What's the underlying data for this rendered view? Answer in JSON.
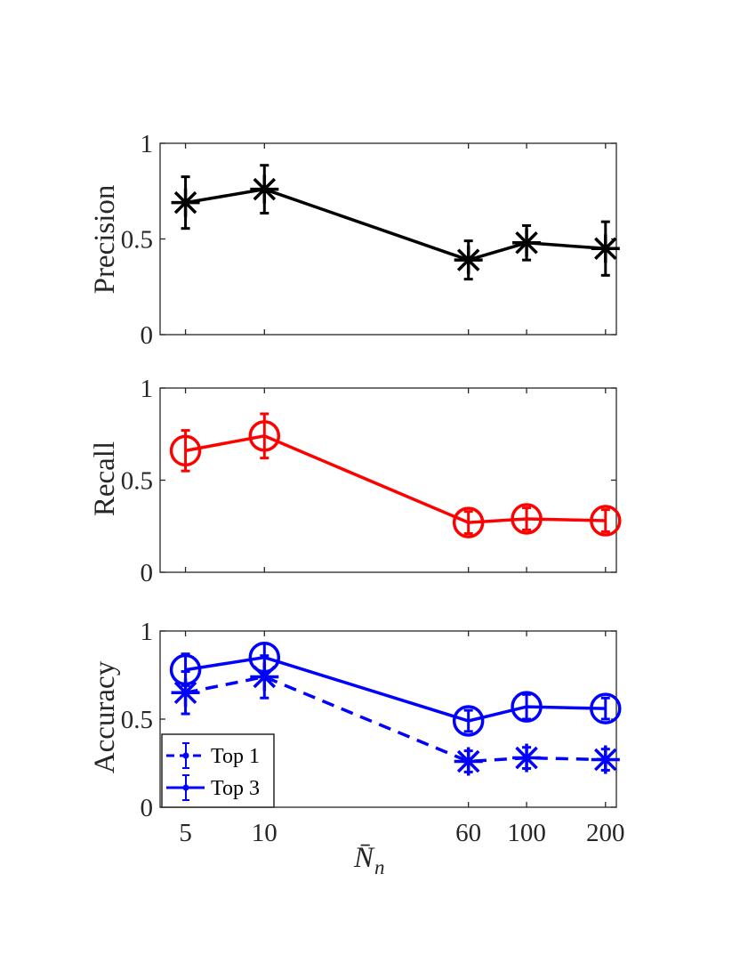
{
  "chart_data": [
    {
      "type": "line",
      "panel": "top",
      "ylabel": "Precision",
      "x": [
        5,
        10,
        60,
        100,
        200
      ],
      "xscale": "log",
      "xlim": [
        4,
        220
      ],
      "ylim": [
        0,
        1
      ],
      "yticks": [
        0,
        0.5,
        1
      ],
      "ytick_labels": [
        "0",
        "0.5",
        "1"
      ],
      "series": [
        {
          "name": "Precision",
          "color": "#000000",
          "marker": "asterisk",
          "linestyle": "solid",
          "values": [
            0.69,
            0.76,
            0.39,
            0.48,
            0.45
          ],
          "errors": [
            0.135,
            0.125,
            0.1,
            0.09,
            0.14
          ]
        }
      ]
    },
    {
      "type": "line",
      "panel": "middle",
      "ylabel": "Recall",
      "x": [
        5,
        10,
        60,
        100,
        200
      ],
      "xscale": "log",
      "xlim": [
        4,
        220
      ],
      "ylim": [
        0,
        1
      ],
      "yticks": [
        0,
        0.5,
        1
      ],
      "ytick_labels": [
        "0",
        "0.5",
        "1"
      ],
      "series": [
        {
          "name": "Recall",
          "color": "#ff0000",
          "marker": "circle",
          "linestyle": "solid",
          "values": [
            0.66,
            0.74,
            0.27,
            0.29,
            0.28
          ],
          "errors": [
            0.11,
            0.12,
            0.06,
            0.06,
            0.06
          ]
        }
      ]
    },
    {
      "type": "line",
      "panel": "bottom",
      "ylabel": "Accuracy",
      "xlabel_main": "N̄",
      "xlabel_sub": "n",
      "x": [
        5,
        10,
        60,
        100,
        200
      ],
      "xscale": "log",
      "xlim": [
        4,
        220
      ],
      "xtick_labels": [
        "5",
        "10",
        "60",
        "100",
        "200"
      ],
      "ylim": [
        0,
        1
      ],
      "yticks": [
        0,
        0.5,
        1
      ],
      "ytick_labels": [
        "0",
        "0.5",
        "1"
      ],
      "legend_position": "bottom-left",
      "series": [
        {
          "name": "Top 1",
          "color": "#0000ff",
          "marker": "asterisk",
          "linestyle": "dashed",
          "values": [
            0.65,
            0.74,
            0.26,
            0.28,
            0.27
          ],
          "errors": [
            0.12,
            0.12,
            0.06,
            0.06,
            0.06
          ]
        },
        {
          "name": "Top 3",
          "color": "#0000ff",
          "marker": "circle",
          "linestyle": "solid",
          "values": [
            0.78,
            0.85,
            0.49,
            0.57,
            0.56
          ],
          "errors": [
            0.09,
            0.08,
            0.06,
            0.07,
            0.06
          ]
        }
      ]
    }
  ]
}
